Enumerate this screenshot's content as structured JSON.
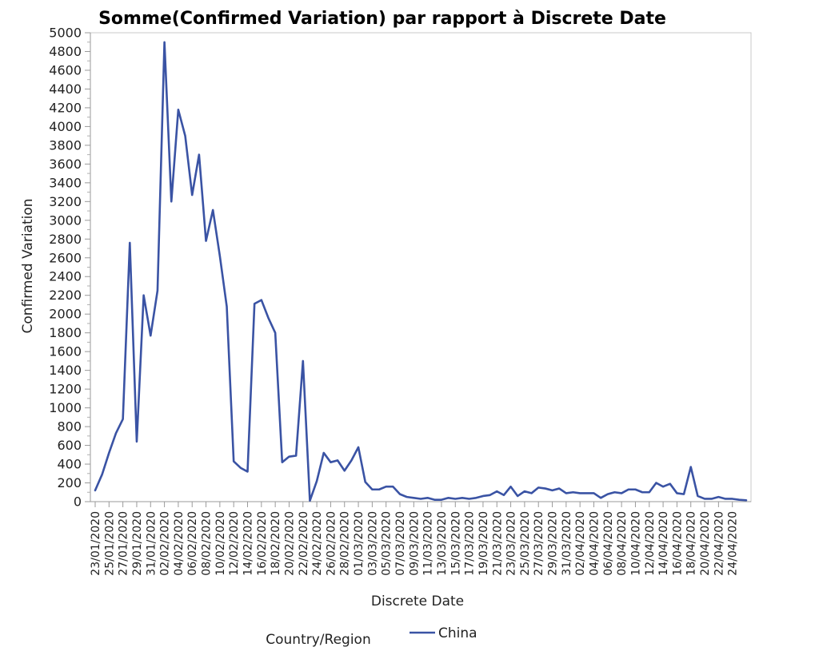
{
  "chart_data": {
    "type": "line",
    "title": "Somme(Confirmed Variation) par rapport à Discrete Date",
    "xlabel": "Discrete Date",
    "ylabel": "Confirmed Variation",
    "ylim": [
      0,
      5000
    ],
    "yticks": [
      0,
      200,
      400,
      600,
      800,
      1000,
      1200,
      1400,
      1600,
      1800,
      2000,
      2200,
      2400,
      2600,
      2800,
      3000,
      3200,
      3400,
      3600,
      3800,
      4000,
      4200,
      4400,
      4600,
      4800,
      5000
    ],
    "x_tick_labels": [
      "23/01/2020",
      "25/01/2020",
      "27/01/2020",
      "29/01/2020",
      "31/01/2020",
      "02/02/2020",
      "04/02/2020",
      "06/02/2020",
      "08/02/2020",
      "10/02/2020",
      "12/02/2020",
      "14/02/2020",
      "16/02/2020",
      "18/02/2020",
      "20/02/2020",
      "22/02/2020",
      "24/02/2020",
      "26/02/2020",
      "28/02/2020",
      "01/03/2020",
      "03/03/2020",
      "05/03/2020",
      "07/03/2020",
      "09/03/2020",
      "11/03/2020",
      "13/03/2020",
      "15/03/2020",
      "17/03/2020",
      "19/03/2020",
      "21/03/2020",
      "23/03/2020",
      "25/03/2020",
      "27/03/2020",
      "29/03/2020",
      "31/03/2020",
      "02/04/2020",
      "04/04/2020",
      "06/04/2020",
      "08/04/2020",
      "10/04/2020",
      "12/04/2020",
      "14/04/2020",
      "16/04/2020",
      "18/04/2020",
      "20/04/2020",
      "22/04/2020",
      "24/04/2020"
    ],
    "x_start": "23/01/2020",
    "x_end": "25/04/2020",
    "grid": false,
    "legend_title": "Country/Region",
    "legend_position": "bottom",
    "series": [
      {
        "name": "China",
        "color": "#3a53a4",
        "values": [
          120,
          290,
          520,
          730,
          880,
          2760,
          640,
          2200,
          1770,
          2250,
          4900,
          3200,
          4180,
          3900,
          3270,
          3700,
          2780,
          3110,
          2620,
          2080,
          430,
          360,
          320,
          2110,
          2150,
          1960,
          1800,
          420,
          480,
          490,
          1500,
          10,
          220,
          520,
          420,
          440,
          330,
          440,
          580,
          210,
          130,
          130,
          160,
          160,
          80,
          50,
          40,
          30,
          40,
          20,
          20,
          40,
          30,
          40,
          30,
          40,
          60,
          70,
          110,
          70,
          160,
          60,
          110,
          90,
          150,
          140,
          120,
          140,
          90,
          100,
          90,
          90,
          90,
          40,
          80,
          100,
          90,
          130,
          130,
          100,
          100,
          200,
          160,
          190,
          90,
          80,
          370,
          60,
          30,
          30,
          50,
          30,
          30,
          20,
          15
        ]
      }
    ]
  }
}
